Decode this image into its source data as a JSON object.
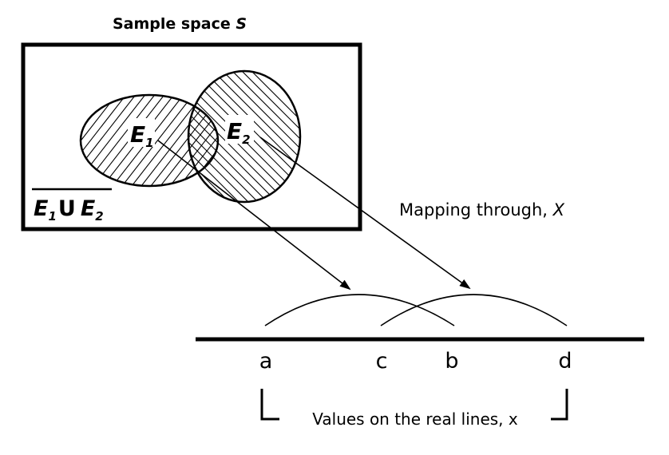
{
  "title": {
    "text": "Sample space ",
    "symbol": "S"
  },
  "events": {
    "e1": {
      "letter": "E",
      "sub": "1"
    },
    "e2": {
      "letter": "E",
      "sub": "2"
    }
  },
  "union_complement": {
    "left_letter": "E",
    "left_sub": "1",
    "operator": "U",
    "right_letter": "E",
    "right_sub": "2"
  },
  "mapping": {
    "text": "Mapping through, ",
    "symbol": "X"
  },
  "axis": {
    "ticks": [
      "a",
      "c",
      "b",
      "d"
    ],
    "caption": "Values on the real lines, x"
  }
}
